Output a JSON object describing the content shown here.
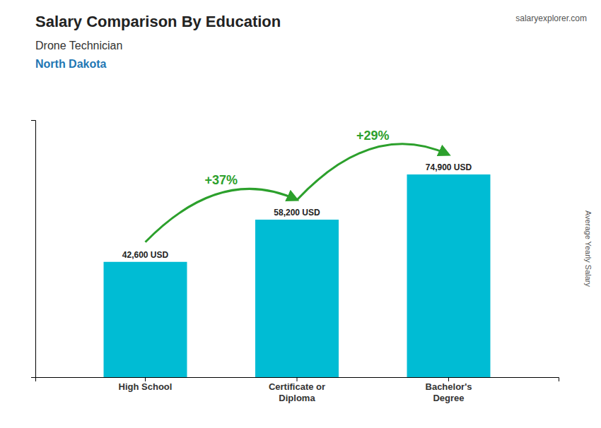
{
  "chart_data": {
    "type": "bar",
    "title": "Salary Comparison By Education",
    "subtitle": [
      "Drone Technician",
      "North Dakota"
    ],
    "brand": "salaryexplorer.com",
    "ylabel": "Average Yearly Salary",
    "categories": [
      "High School",
      "Certificate or\nDiploma",
      "Bachelor's\nDegree"
    ],
    "values": [
      42600,
      58200,
      74900
    ],
    "value_labels": [
      "42,600 USD",
      "58,200 USD",
      "74,900 USD"
    ],
    "data_labels": true,
    "annotations": [
      "+37%",
      "+29%"
    ],
    "color": "#00bcd4",
    "ylim": [
      0,
      95000
    ],
    "grid": false,
    "tick_labels": "x"
  }
}
